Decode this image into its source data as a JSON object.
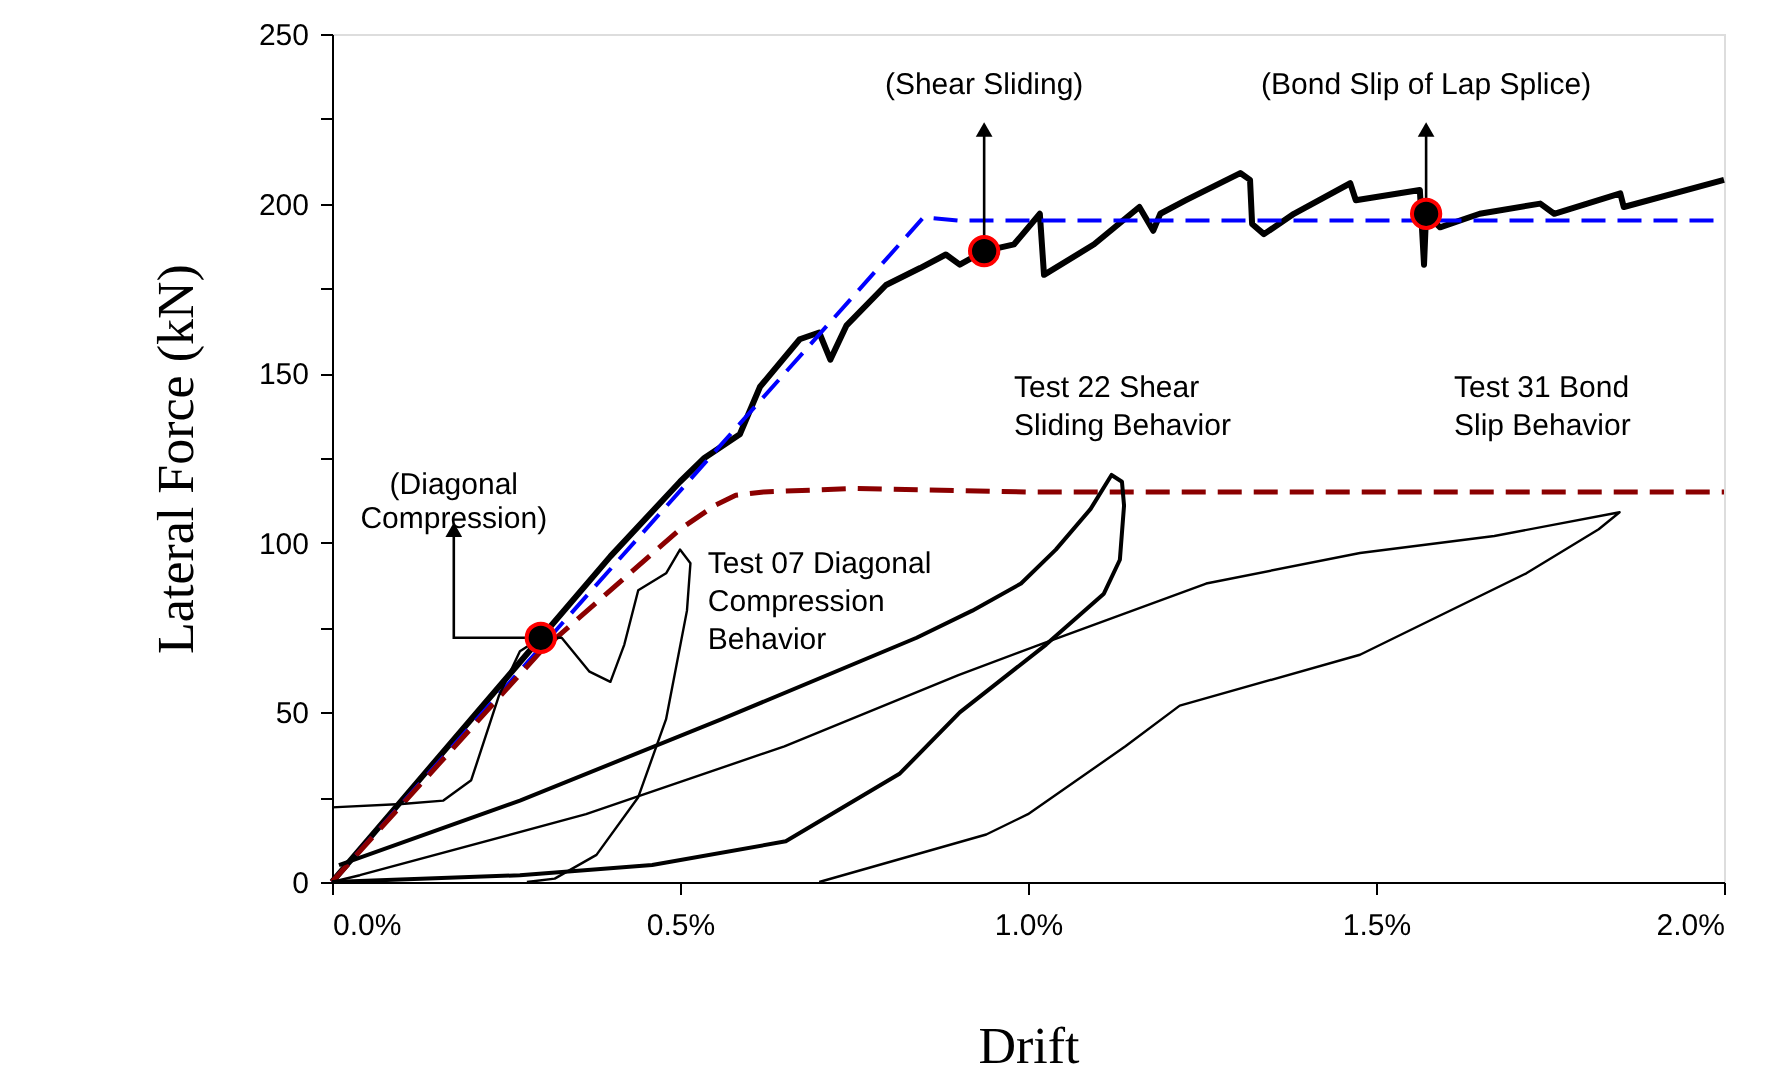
{
  "chart_data": {
    "type": "line",
    "xlabel": "Drift",
    "ylabel": "Lateral Force (kN)",
    "xlim": [
      0,
      2.0
    ],
    "ylim": [
      0,
      250
    ],
    "xticks": [
      {
        "value": 0,
        "label": "0.0%"
      },
      {
        "value": 0.5,
        "label": "0.5%"
      },
      {
        "value": 1.0,
        "label": "1.0%"
      },
      {
        "value": 1.5,
        "label": "1.5%"
      },
      {
        "value": 2.0,
        "label": "2.0%"
      }
    ],
    "yticks": [
      0,
      {
        "value": 25,
        "label": null
      },
      50,
      {
        "value": 75,
        "label": null
      },
      100,
      {
        "value": 125,
        "label": null
      },
      150,
      {
        "value": 175,
        "label": null
      },
      200,
      {
        "value": 225,
        "label": null
      },
      250
    ],
    "grid": false,
    "series": [
      {
        "color": "#000000",
        "x": [
          0,
          0.1,
          0.2,
          0.3,
          0.4,
          0.5,
          0.535,
          0.586,
          0.615,
          0.672,
          0.7,
          0.716,
          0.739,
          0.796,
          0.845,
          0.882,
          0.902,
          0.937,
          0.98,
          1.017,
          1.023,
          1.095,
          1.16,
          1.18,
          1.19,
          1.227,
          1.305,
          1.319,
          1.322,
          1.339,
          1.382,
          1.463,
          1.471,
          1.563,
          1.569,
          1.572,
          1.592,
          1.649,
          1.736,
          1.756,
          1.851,
          1.856,
          2.0
        ],
        "values": [
          0,
          24,
          48,
          72,
          96,
          118,
          125,
          132,
          146,
          160,
          162,
          154,
          164,
          176,
          181,
          185,
          182,
          186,
          188,
          197,
          179,
          188,
          199,
          192,
          197,
          201,
          209,
          207,
          194,
          191,
          197,
          206,
          201,
          204,
          182,
          197,
          193,
          197,
          200,
          197,
          203,
          199,
          207
        ]
      },
      {
        "color": "#0000ff",
        "line_style": "dashed",
        "x": [
          0,
          0.85,
          0.9,
          2.0
        ],
        "values": [
          0,
          196,
          195,
          195
        ]
      },
      {
        "color": "#8b0000",
        "line_style": "dashed",
        "x": [
          0,
          0.3,
          0.5,
          0.55,
          0.58,
          0.62,
          0.75,
          1.0,
          2.0
        ],
        "values": [
          0,
          68,
          104,
          111,
          114,
          115,
          116,
          115,
          115
        ]
      },
      {
        "color": "#000000",
        "x": [
          0,
          0.1,
          0.16,
          0.2,
          0.24,
          0.27,
          0.3,
          0.33,
          0.37,
          0.4,
          0.42,
          0.44,
          0.48,
          0.5,
          0.515,
          0.51,
          0.48,
          0.44,
          0.38,
          0.32,
          0.28
        ],
        "values": [
          22,
          23,
          24,
          30,
          55,
          68,
          72,
          72,
          62,
          59,
          70,
          86,
          91,
          98,
          94,
          80,
          48,
          25,
          8,
          1,
          0
        ]
      },
      {
        "color": "#000000",
        "x": [
          0.01,
          0.27,
          0.56,
          0.84,
          0.92,
          0.99,
          1.04,
          1.09,
          1.12,
          1.135,
          1.138,
          1.132,
          1.109,
          1.026,
          0.902,
          0.816,
          0.652,
          0.46,
          0.27,
          0
        ],
        "values": [
          5,
          24,
          48,
          72,
          80,
          88,
          98,
          110,
          120,
          118,
          111,
          95,
          85,
          70,
          50,
          32,
          12,
          5,
          2,
          0
        ]
      },
      {
        "color": "#000000",
        "x": [
          0,
          0.04,
          0.365,
          0.65,
          0.9,
          1.017,
          1.256,
          1.477,
          1.67,
          1.85,
          1.82,
          1.716,
          1.477,
          1.218,
          1.14,
          1.0,
          0.94,
          0.7
        ],
        "values": [
          0,
          2,
          20,
          40,
          61,
          70,
          88,
          97,
          102,
          109,
          104,
          91,
          67,
          52,
          40,
          20,
          14,
          0
        ]
      },
      {
        "type": "scatter",
        "color": "#000000",
        "x": [
          0.3,
          0.937,
          1.572
        ],
        "values": [
          72,
          186,
          197
        ]
      }
    ],
    "annotations": [
      {
        "text": "(Diagonal\nCompression)",
        "x": 0.175,
        "y": 105
      },
      {
        "text": "(Shear Sliding)",
        "x": 0.937,
        "y": 223
      },
      {
        "text": "(Bond Slip of  Lap Splice)",
        "x": 1.572,
        "y": 223
      },
      "Test 07 Diagonal\nCompression\nBehavior",
      "Test 22 Shear\nSliding Behavior",
      "Test 31 Bond\nSlip Behavior"
    ]
  }
}
